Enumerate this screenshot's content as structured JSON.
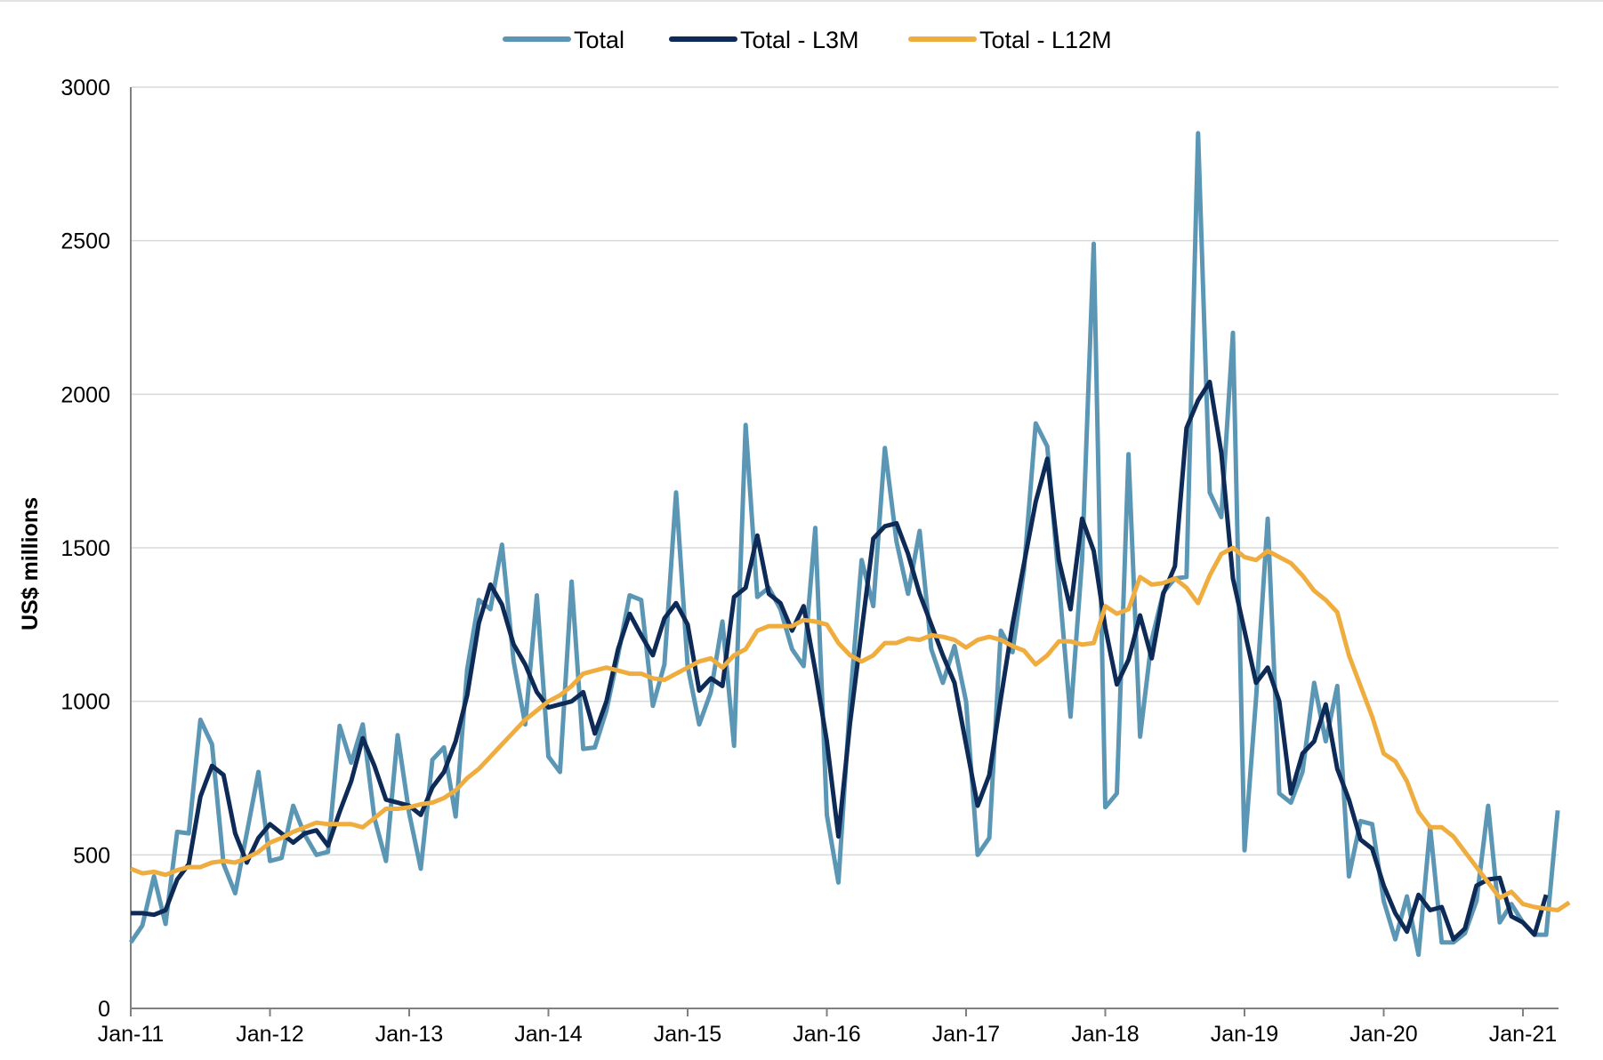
{
  "chart_data": {
    "type": "line",
    "title": "",
    "xlabel": "",
    "ylabel": "US$ millions",
    "ylim": [
      0,
      3000
    ],
    "yticks": [
      "0",
      "500",
      "1000",
      "1500",
      "2000",
      "2500",
      "3000"
    ],
    "xticks": [
      "Jan-11",
      "Jan-12",
      "Jan-13",
      "Jan-14",
      "Jan-15",
      "Jan-16",
      "Jan-17",
      "Jan-18",
      "Jan-19",
      "Jan-20",
      "Jan-21"
    ],
    "x_start": "Jan-11",
    "grid": "horizontal",
    "legend_position": "top",
    "series": [
      {
        "name": "Total",
        "color": "#5b97b5",
        "values": [
          215,
          270,
          430,
          275,
          575,
          570,
          940,
          860,
          470,
          375,
          570,
          770,
          480,
          490,
          660,
          565,
          500,
          510,
          920,
          800,
          925,
          620,
          480,
          890,
          635,
          455,
          810,
          850,
          625,
          1105,
          1330,
          1300,
          1510,
          1130,
          925,
          1345,
          820,
          770,
          1390,
          845,
          850,
          970,
          1150,
          1345,
          1330,
          985,
          1120,
          1680,
          1115,
          925,
          1030,
          1260,
          855,
          1900,
          1340,
          1370,
          1300,
          1170,
          1115,
          1565,
          630,
          410,
          1000,
          1460,
          1310,
          1825,
          1520,
          1350,
          1555,
          1170,
          1060,
          1180,
          1000,
          500,
          555,
          1230,
          1160,
          1430,
          1905,
          1830,
          1390,
          950,
          1460,
          2490,
          655,
          700,
          1805,
          885,
          1200,
          1355,
          1400,
          1405,
          2850,
          1680,
          1600,
          2200,
          515,
          1010,
          1595,
          700,
          670,
          770,
          1060,
          870,
          1050,
          430,
          610,
          600,
          350,
          225,
          365,
          175,
          590,
          215,
          215,
          245,
          350,
          660,
          280,
          340,
          280,
          240,
          240,
          645
        ]
      },
      {
        "name": "Total - L3M",
        "color": "#0e2a56",
        "values": [
          310,
          310,
          305,
          320,
          420,
          470,
          690,
          790,
          760,
          570,
          475,
          555,
          600,
          570,
          540,
          570,
          580,
          530,
          640,
          740,
          880,
          790,
          680,
          670,
          660,
          630,
          720,
          770,
          870,
          1020,
          1255,
          1380,
          1315,
          1185,
          1120,
          1030,
          980,
          990,
          1000,
          1030,
          895,
          1000,
          1170,
          1285,
          1215,
          1150,
          1270,
          1320,
          1250,
          1035,
          1075,
          1050,
          1340,
          1370,
          1540,
          1350,
          1320,
          1230,
          1310,
          1100,
          870,
          560,
          930,
          1230,
          1530,
          1570,
          1580,
          1480,
          1350,
          1250,
          1150,
          1060,
          860,
          660,
          760,
          1010,
          1250,
          1450,
          1650,
          1790,
          1460,
          1300,
          1595,
          1490,
          1240,
          1055,
          1135,
          1280,
          1140,
          1350,
          1440,
          1890,
          1980,
          2040,
          1810,
          1400,
          1230,
          1060,
          1110,
          1000,
          700,
          830,
          870,
          990,
          780,
          680,
          550,
          520,
          400,
          310,
          250,
          370,
          320,
          330,
          225,
          260,
          400,
          420,
          425,
          300,
          280,
          240,
          370
        ]
      },
      {
        "name": "Total - L12M",
        "color": "#f0ad3f",
        "values": [
          455,
          440,
          445,
          435,
          450,
          460,
          460,
          475,
          480,
          475,
          490,
          510,
          540,
          555,
          575,
          590,
          605,
          600,
          600,
          600,
          590,
          620,
          650,
          650,
          655,
          665,
          670,
          685,
          710,
          750,
          780,
          820,
          860,
          900,
          940,
          970,
          1000,
          1020,
          1050,
          1090,
          1100,
          1110,
          1100,
          1090,
          1090,
          1075,
          1070,
          1090,
          1110,
          1130,
          1140,
          1110,
          1150,
          1170,
          1230,
          1245,
          1245,
          1245,
          1265,
          1260,
          1250,
          1190,
          1150,
          1130,
          1150,
          1190,
          1190,
          1205,
          1200,
          1215,
          1210,
          1200,
          1175,
          1200,
          1210,
          1200,
          1180,
          1165,
          1120,
          1150,
          1195,
          1195,
          1185,
          1190,
          1310,
          1285,
          1300,
          1405,
          1380,
          1385,
          1400,
          1370,
          1320,
          1410,
          1480,
          1500,
          1470,
          1460,
          1490,
          1470,
          1450,
          1410,
          1360,
          1330,
          1290,
          1150,
          1050,
          950,
          830,
          805,
          740,
          640,
          590,
          590,
          560,
          510,
          460,
          410,
          360,
          380,
          340,
          330,
          325,
          320,
          345
        ]
      }
    ]
  }
}
